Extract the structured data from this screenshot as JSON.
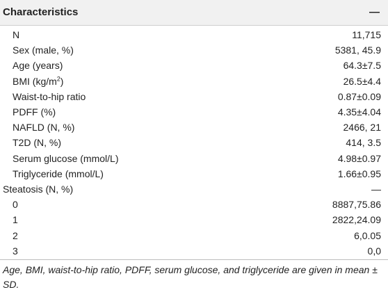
{
  "table": {
    "header": [
      "Characteristics",
      "—"
    ],
    "groups": [
      {
        "rows": [
          {
            "label": "N",
            "value": "11,715"
          },
          {
            "label": "Sex (male, %)",
            "value": "5381, 45.9"
          },
          {
            "label": "Age (years)",
            "value": "64.3±7.5"
          },
          {
            "label": {
              "text": "BMI (kg/m",
              "sup": "2",
              "after": ")"
            },
            "value": "26.5±4.4"
          },
          {
            "label": "Waist-to-hip ratio",
            "value": "0.87±0.09"
          },
          {
            "label": "PDFF (%)",
            "value": "4.35±4.04"
          },
          {
            "label": "NAFLD (N, %)",
            "value": "2466, 21"
          },
          {
            "label": "T2D (N, %)",
            "value": "414, 3.5"
          },
          {
            "label": "Serum glucose (mmol/L)",
            "value": "4.98±0.97"
          },
          {
            "label": "Triglyceride (mmol/L)",
            "value": "1.66±0.95"
          }
        ]
      },
      {
        "label": "Steatosis (N, %)",
        "value": "—",
        "rows": [
          {
            "label": "0",
            "value": "8887,75.86"
          },
          {
            "label": "1",
            "value": "2822,24.09"
          },
          {
            "label": "2",
            "value": "6,0.05"
          },
          {
            "label": "3",
            "value": "0,0"
          }
        ]
      }
    ],
    "footnote": "Age, BMI, waist-to-hip ratio, PDFF, serum glucose, and triglyceride are given in mean ± SD."
  }
}
